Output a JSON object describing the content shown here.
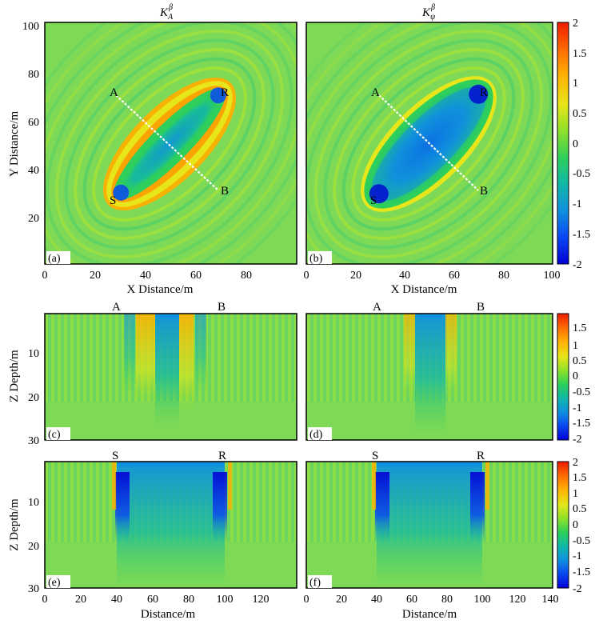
{
  "colors": {
    "colormap": [
      "#0000d6",
      "#0a46f0",
      "#0f8fe0",
      "#12b7a8",
      "#2ecf5a",
      "#8fe02a",
      "#e6e61a",
      "#ffb000",
      "#ff6a00",
      "#ee1c00"
    ],
    "background_green": "#7ed957",
    "frame": "#000000",
    "line_AB": "#ffffff"
  },
  "chart_data": [
    {
      "id": "a",
      "type": "heatmap",
      "panel_label": "(a)",
      "title": "K_A^β",
      "xlabel": "X Distance/m",
      "ylabel": "Y Distance/m",
      "xlim": [
        0,
        100
      ],
      "ylim": [
        0,
        100
      ],
      "x_ticks": [
        "0",
        "20",
        "40",
        "60",
        "80"
      ],
      "y_ticks": [
        "20",
        "40",
        "60",
        "80",
        "100"
      ],
      "points": [
        {
          "label": "A",
          "x": 30,
          "y": 70
        },
        {
          "label": "R",
          "x": 70,
          "y": 70
        },
        {
          "label": "S",
          "x": 30,
          "y": 30
        },
        {
          "label": "B",
          "x": 70,
          "y": 30
        }
      ],
      "line": {
        "from": "A",
        "to": "B"
      },
      "pattern": "elliptical banana kernel between S and R: negative core, positive flanks"
    },
    {
      "id": "b",
      "type": "heatmap",
      "panel_label": "(b)",
      "title": "K_ψ^β",
      "xlabel": "X Distance/m",
      "ylabel": "",
      "xlim": [
        0,
        100
      ],
      "ylim": [
        0,
        100
      ],
      "x_ticks": [
        "0",
        "20",
        "40",
        "60",
        "80",
        "100"
      ],
      "y_ticks": [],
      "points": [
        {
          "label": "A",
          "x": 30,
          "y": 70
        },
        {
          "label": "R",
          "x": 70,
          "y": 70
        },
        {
          "label": "S",
          "x": 30,
          "y": 30
        },
        {
          "label": "B",
          "x": 70,
          "y": 30
        }
      ],
      "line": {
        "from": "A",
        "to": "B"
      },
      "pattern": "elliptical kernel between S and R: strong negative core"
    },
    {
      "id": "c",
      "type": "heatmap",
      "panel_label": "(c)",
      "title": "",
      "xlabel": "",
      "ylabel": "Z Depth/m",
      "ylim": [
        0,
        30
      ],
      "y_ticks": [
        "10",
        "20",
        "30"
      ],
      "top_markers": [
        "A",
        "B"
      ],
      "pattern": "vertical section along A-B: positive bands at flanks, negative centre"
    },
    {
      "id": "d",
      "type": "heatmap",
      "panel_label": "(d)",
      "title": "",
      "xlabel": "",
      "ylabel": "",
      "ylim": [
        0,
        30
      ],
      "y_ticks": [],
      "top_markers": [
        "A",
        "B"
      ],
      "pattern": "vertical section along A-B: negative centre column"
    },
    {
      "id": "e",
      "type": "heatmap",
      "panel_label": "(e)",
      "title": "",
      "xlabel": "Distance/m",
      "ylabel": "Z Depth/m",
      "xlim": [
        0,
        140
      ],
      "ylim": [
        0,
        30
      ],
      "x_ticks": [
        "0",
        "20",
        "40",
        "60",
        "80",
        "100",
        "120"
      ],
      "y_ticks": [
        "10",
        "20",
        "30"
      ],
      "top_markers": [
        "S",
        "R"
      ],
      "pattern": "vertical section along S-R: broad negative region between 40 and 100 m"
    },
    {
      "id": "f",
      "type": "heatmap",
      "panel_label": "(f)",
      "title": "",
      "xlabel": "Distance/m",
      "ylabel": "",
      "xlim": [
        0,
        140
      ],
      "ylim": [
        0,
        30
      ],
      "x_ticks": [
        "0",
        "20",
        "40",
        "60",
        "80",
        "100",
        "120",
        "140"
      ],
      "y_ticks": [],
      "top_markers": [
        "S",
        "R"
      ],
      "pattern": "vertical section along S-R: broad negative region between 40 and 100 m"
    }
  ],
  "colorbars": [
    {
      "id": "cb1",
      "min": -2,
      "max": 2,
      "labels": [
        "2",
        "1.5",
        "1",
        "0.5",
        "0",
        "-0.5",
        "-1",
        "-1.5",
        "-2"
      ]
    },
    {
      "id": "cb2",
      "min": -2,
      "max": 2,
      "labels": [
        "1.5",
        "1",
        "0.5",
        "0",
        "-0.5",
        "-1",
        "-1.5",
        "-2"
      ]
    },
    {
      "id": "cb3",
      "min": -2,
      "max": 2,
      "labels": [
        "2",
        "1.5",
        "1",
        "0.5",
        "0",
        "-0.5",
        "-1",
        "-1.5",
        "-2"
      ]
    }
  ],
  "titles": {
    "a_main": "K",
    "a_sub": "A",
    "b_main": "K",
    "b_sub": "ψ",
    "sup": "β"
  }
}
